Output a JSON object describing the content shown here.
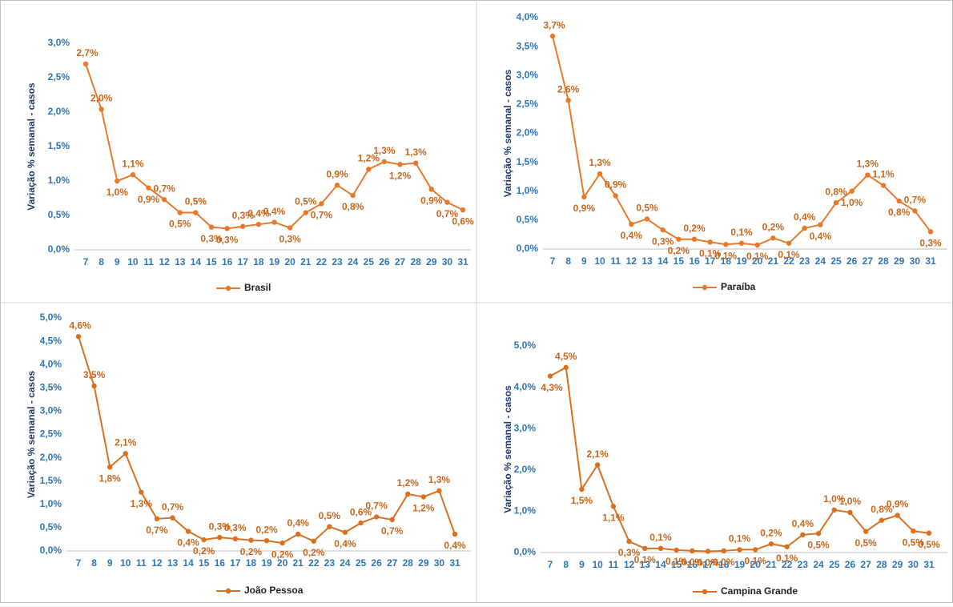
{
  "chart_data": [
    {
      "type": "line",
      "y_label": "Variação % semanal - casos",
      "categories": [
        "7",
        "8",
        "9",
        "10",
        "11",
        "12",
        "13",
        "14",
        "15",
        "16",
        "17",
        "18",
        "19",
        "20",
        "21",
        "22",
        "23",
        "24",
        "25",
        "26",
        "27",
        "28",
        "29",
        "30",
        "31"
      ],
      "series": [
        {
          "name": "Brasil",
          "color": "#e8792b",
          "values": [
            2.7,
            2.04,
            1.0,
            1.09,
            0.9,
            0.73,
            0.54,
            0.54,
            0.33,
            0.31,
            0.34,
            0.37,
            0.4,
            0.32,
            0.54,
            0.67,
            0.94,
            0.79,
            1.17,
            1.28,
            1.24,
            1.26,
            0.88,
            0.69,
            0.58
          ],
          "value_labels": [
            "2,7%",
            "2,0%",
            "1,0%",
            "1,1%",
            "0,9%",
            "0,7%",
            "0,5%",
            "0,5%",
            "0,3%",
            "0,3%",
            "0,3%",
            "0,4%",
            "0,4%",
            "0,3%",
            "0,5%",
            "0,7%",
            "0,9%",
            "0,8%",
            "1,2%",
            "1,3%",
            "1,2%",
            "1,3%",
            "0,9%",
            "0,7%",
            "0,6%"
          ]
        }
      ],
      "ylim": [
        0,
        3
      ],
      "yticks": [
        {
          "value": 0,
          "label": "0,0%"
        },
        {
          "value": 0.5,
          "label": "0,5%"
        },
        {
          "value": 1,
          "label": "1,0%"
        },
        {
          "value": 1.5,
          "label": "1,5%"
        },
        {
          "value": 2,
          "label": "2,0%"
        },
        {
          "value": 2.5,
          "label": "2,5%"
        },
        {
          "value": 3,
          "label": "3,0%"
        }
      ],
      "legend": "bottom",
      "grid": false
    },
    {
      "type": "line",
      "y_label": "Variação % semanal - casos",
      "categories": [
        "7",
        "8",
        "9",
        "10",
        "11",
        "12",
        "13",
        "14",
        "15",
        "16",
        "17",
        "18",
        "19",
        "20",
        "21",
        "22",
        "23",
        "24",
        "25",
        "26",
        "27",
        "28",
        "29",
        "30",
        "31"
      ],
      "series": [
        {
          "name": "Paraíba",
          "color": "#e8792b",
          "values": [
            3.68,
            2.57,
            0.9,
            1.3,
            0.92,
            0.43,
            0.52,
            0.33,
            0.17,
            0.17,
            0.12,
            0.08,
            0.1,
            0.07,
            0.19,
            0.1,
            0.36,
            0.42,
            0.8,
            1.0,
            1.28,
            1.1,
            0.83,
            0.66,
            0.3
          ],
          "value_labels": [
            "3,7%",
            "2,6%",
            "0,9%",
            "1,3%",
            "0,9%",
            "0,4%",
            "0,5%",
            "0,3%",
            "0,2%",
            "0,2%",
            "0,1%",
            "0,1%",
            "0,1%",
            "0,1%",
            "0,2%",
            "0,1%",
            "0,4%",
            "0,4%",
            "0,8%",
            "1,0%",
            "1,3%",
            "1,1%",
            "0,8%",
            "0,7%",
            "0,3%"
          ]
        }
      ],
      "ylim": [
        0,
        4
      ],
      "yticks": [
        {
          "value": 0,
          "label": "0,0%"
        },
        {
          "value": 0.5,
          "label": "0,5%"
        },
        {
          "value": 1,
          "label": "1,0%"
        },
        {
          "value": 1.5,
          "label": "1,5%"
        },
        {
          "value": 2,
          "label": "2,0%"
        },
        {
          "value": 2.5,
          "label": "2,5%"
        },
        {
          "value": 3,
          "label": "3,0%"
        },
        {
          "value": 3.5,
          "label": "3,5%"
        },
        {
          "value": 4,
          "label": "4,0%"
        }
      ],
      "legend": "bottom",
      "grid": false
    },
    {
      "type": "line",
      "y_label": "Variação % semanal - casos",
      "categories": [
        "7",
        "8",
        "9",
        "10",
        "11",
        "12",
        "13",
        "14",
        "15",
        "16",
        "17",
        "18",
        "19",
        "20",
        "21",
        "22",
        "23",
        "24",
        "25",
        "26",
        "27",
        "28",
        "29",
        "30",
        "31"
      ],
      "series": [
        {
          "name": "João Pessoa",
          "color": "#d9701f",
          "values": [
            4.6,
            3.54,
            1.8,
            2.09,
            1.26,
            0.69,
            0.71,
            0.42,
            0.24,
            0.29,
            0.26,
            0.23,
            0.22,
            0.17,
            0.36,
            0.21,
            0.52,
            0.4,
            0.6,
            0.73,
            0.67,
            1.22,
            1.16,
            1.29,
            0.36
          ],
          "value_labels": [
            "4,6%",
            "3,5%",
            "1,8%",
            "2,1%",
            "1,3%",
            "0,7%",
            "0,7%",
            "0,4%",
            "0,2%",
            "0,3%",
            "0,3%",
            "0,2%",
            "0,2%",
            "0,2%",
            "0,4%",
            "0,2%",
            "0,5%",
            "0,4%",
            "0,6%",
            "0,7%",
            "0,7%",
            "1,2%",
            "1,2%",
            "1,3%",
            "0,4%"
          ]
        }
      ],
      "ylim": [
        0,
        5
      ],
      "yticks": [
        {
          "value": 0,
          "label": "0,0%"
        },
        {
          "value": 0.5,
          "label": "0,5%"
        },
        {
          "value": 1,
          "label": "1,0%"
        },
        {
          "value": 1.5,
          "label": "1,5%"
        },
        {
          "value": 2,
          "label": "2,0%"
        },
        {
          "value": 2.5,
          "label": "2,5%"
        },
        {
          "value": 3,
          "label": "3,0%"
        },
        {
          "value": 3.5,
          "label": "3,5%"
        },
        {
          "value": 4,
          "label": "4,0%"
        },
        {
          "value": 4.5,
          "label": "4,5%"
        },
        {
          "value": 5,
          "label": "5,0%"
        }
      ],
      "legend": "bottom",
      "grid": false
    },
    {
      "type": "line",
      "y_label": "Variação % semanal - casos",
      "categories": [
        "7",
        "8",
        "9",
        "10",
        "11",
        "12",
        "13",
        "14",
        "15",
        "16",
        "17",
        "18",
        "19",
        "20",
        "21",
        "22",
        "23",
        "24",
        "25",
        "26",
        "27",
        "28",
        "29",
        "30",
        "31"
      ],
      "series": [
        {
          "name": "Campina Grande",
          "color": "#d9701f",
          "values": [
            4.27,
            4.48,
            1.53,
            2.12,
            1.12,
            0.27,
            0.1,
            0.1,
            0.06,
            0.04,
            0.03,
            0.04,
            0.07,
            0.07,
            0.21,
            0.14,
            0.43,
            0.46,
            1.03,
            0.97,
            0.51,
            0.78,
            0.9,
            0.52,
            0.47
          ],
          "value_labels": [
            "4,3%",
            "4,5%",
            "1,5%",
            "2,1%",
            "1,1%",
            "0,3%",
            "0,1%",
            "0,1%",
            "0,1%",
            "0,0%",
            "0,0%",
            "0,0%",
            "0,1%",
            "0,1%",
            "0,2%",
            "0,1%",
            "0,4%",
            "0,5%",
            "1,0%",
            "1,0%",
            "0,5%",
            "0,8%",
            "0,9%",
            "0,5%",
            "0,5%"
          ]
        }
      ],
      "ylim": [
        0,
        5
      ],
      "yticks": [
        {
          "value": 0,
          "label": "0,0%"
        },
        {
          "value": 1,
          "label": "1,0%"
        },
        {
          "value": 2,
          "label": "2,0%"
        },
        {
          "value": 3,
          "label": "3,0%"
        },
        {
          "value": 4,
          "label": "4,0%"
        },
        {
          "value": 5,
          "label": "5,0%"
        }
      ],
      "legend": "bottom",
      "grid": false
    }
  ]
}
